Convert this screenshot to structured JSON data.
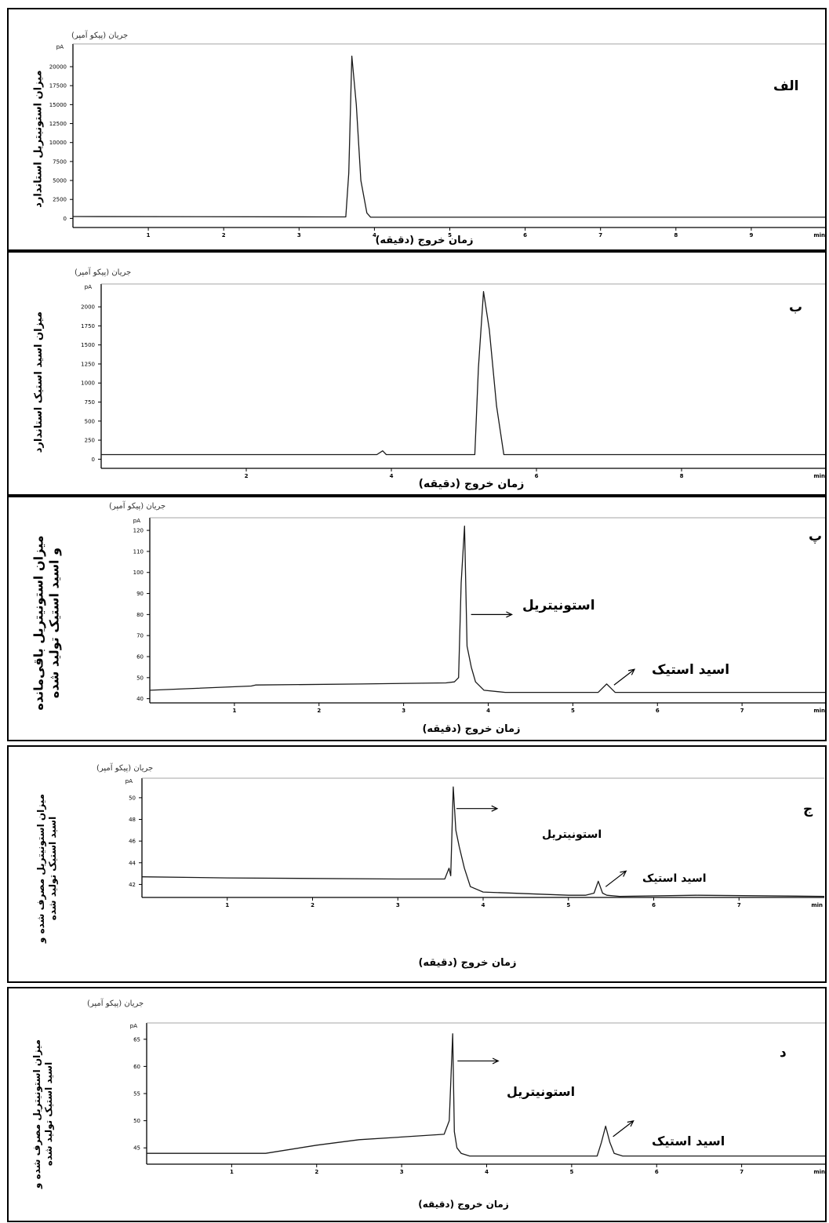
{
  "current_label": "جریان (پیکو آمپر)",
  "xaxis_title": "زمان خروج (دقیقه)",
  "chart_data": [
    {
      "id": "alef",
      "type": "line",
      "panel_letter": "الف",
      "ylabel_lines": [
        "میزان استونیتریل استاندارد"
      ],
      "xlim": [
        0,
        10
      ],
      "ylim": [
        -1200,
        23000
      ],
      "y_unit": "pA",
      "x_unit": "min",
      "x_ticks": [
        1,
        2,
        3,
        4,
        5,
        6,
        7,
        8,
        9
      ],
      "y_ticks": [
        0,
        2500,
        5000,
        7500,
        10000,
        12500,
        15000,
        17500,
        20000
      ],
      "series": [
        {
          "x": [
            0,
            3.4,
            3.62,
            3.66,
            3.7,
            3.76,
            3.82,
            3.9,
            3.95,
            4.2,
            10
          ],
          "y": [
            250,
            200,
            200,
            6000,
            21400,
            15000,
            5000,
            700,
            150,
            150,
            150
          ]
        }
      ],
      "annotations": []
    },
    {
      "id": "be",
      "type": "line",
      "panel_letter": "ب",
      "ylabel_lines": [
        "میزان اسید استیک استاندارد"
      ],
      "xlim": [
        0,
        10
      ],
      "ylim": [
        -120,
        2300
      ],
      "y_unit": "pA",
      "x_unit": "min",
      "x_ticks": [
        2,
        4,
        6,
        8
      ],
      "y_ticks": [
        0,
        250,
        500,
        750,
        1000,
        1250,
        1500,
        1750,
        2000
      ],
      "series": [
        {
          "x": [
            0,
            3.8,
            3.88,
            3.93,
            4.0,
            5.15,
            5.2,
            5.27,
            5.35,
            5.45,
            5.55,
            10
          ],
          "y": [
            60,
            60,
            110,
            60,
            60,
            60,
            1200,
            2200,
            1700,
            700,
            60,
            60
          ]
        }
      ],
      "annotations": []
    },
    {
      "id": "pe",
      "type": "line",
      "panel_letter": "پ",
      "ylabel_lines": [
        "میزان استونیتریل باقی‌مانده",
        "و اسید استیک تولید شده"
      ],
      "xlim": [
        0,
        8
      ],
      "ylim": [
        38,
        126
      ],
      "y_unit": "pA",
      "x_unit": "min",
      "x_ticks": [
        1,
        2,
        3,
        4,
        5,
        6,
        7
      ],
      "y_ticks": [
        40,
        50,
        60,
        70,
        80,
        90,
        100,
        110,
        120
      ],
      "series": [
        {
          "x": [
            0,
            1.2,
            1.25,
            2.5,
            3.5,
            3.6,
            3.65,
            3.68,
            3.72,
            3.75,
            3.8,
            3.85,
            3.95,
            4.2,
            5.3,
            5.35,
            5.4,
            5.45,
            5.5,
            8
          ],
          "y": [
            44,
            46,
            46.5,
            47,
            47.5,
            48,
            50,
            95,
            122,
            65,
            55,
            48,
            44,
            43,
            43,
            45,
            47,
            45,
            43,
            43
          ]
        }
      ],
      "annotations": [
        {
          "label": "استونیتریل",
          "x": 3.76,
          "y": 80
        },
        {
          "label": "اسید استیک",
          "x": 5.45,
          "y": 45
        }
      ]
    },
    {
      "id": "je",
      "type": "line",
      "panel_letter": "ج",
      "ylabel_lines": [
        "میزان استونیتریل مصرف شده و",
        "اسید استیک تولید شده"
      ],
      "xlim": [
        0,
        8
      ],
      "ylim": [
        40.8,
        51.8
      ],
      "y_unit": "pA",
      "x_unit": "min",
      "x_ticks": [
        1,
        2,
        3,
        4,
        5,
        6,
        7
      ],
      "y_ticks": [
        42,
        44,
        46,
        48,
        50
      ],
      "series": [
        {
          "x": [
            0,
            1,
            3,
            3.55,
            3.6,
            3.62,
            3.65,
            3.68,
            3.72,
            3.78,
            3.85,
            4.0,
            5.0,
            5.2,
            5.3,
            5.35,
            5.4,
            5.45,
            5.6,
            6.5,
            8
          ],
          "y": [
            42.7,
            42.6,
            42.5,
            42.5,
            43.5,
            42.8,
            51.0,
            47.0,
            45.5,
            43.5,
            41.8,
            41.3,
            41.0,
            41.0,
            41.2,
            42.3,
            41.2,
            41.0,
            40.9,
            41.0,
            40.9
          ]
        }
      ],
      "annotations": [
        {
          "label": "استونیتریل",
          "x": 3.65,
          "y": 49
        },
        {
          "label": "اسید استیک",
          "x": 5.4,
          "y": 41.5
        }
      ]
    },
    {
      "id": "dal",
      "type": "line",
      "panel_letter": "د",
      "ylabel_lines": [
        "میزان استونیتریل مصرف شده و",
        "اسید استیک تولید شده"
      ],
      "xlim": [
        0,
        8
      ],
      "ylim": [
        42,
        68
      ],
      "y_unit": "pA",
      "x_unit": "min",
      "x_ticks": [
        1,
        2,
        3,
        4,
        5,
        6,
        7
      ],
      "y_ticks": [
        45,
        50,
        55,
        60,
        65
      ],
      "series": [
        {
          "x": [
            0,
            1.4,
            2.0,
            2.5,
            3.0,
            3.5,
            3.56,
            3.6,
            3.62,
            3.65,
            3.7,
            3.8,
            4.0,
            5.3,
            5.35,
            5.4,
            5.45,
            5.5,
            5.6,
            8
          ],
          "y": [
            44,
            44,
            45.5,
            46.5,
            47,
            47.5,
            50,
            66,
            48,
            45,
            44,
            43.5,
            43.5,
            43.5,
            46,
            49,
            46,
            44,
            43.5,
            43.5
          ]
        }
      ],
      "annotations": [
        {
          "label": "استونیتریل",
          "x": 3.62,
          "y": 61
        },
        {
          "label": "اسید استیک",
          "x": 5.45,
          "y": 46.5
        }
      ]
    }
  ]
}
